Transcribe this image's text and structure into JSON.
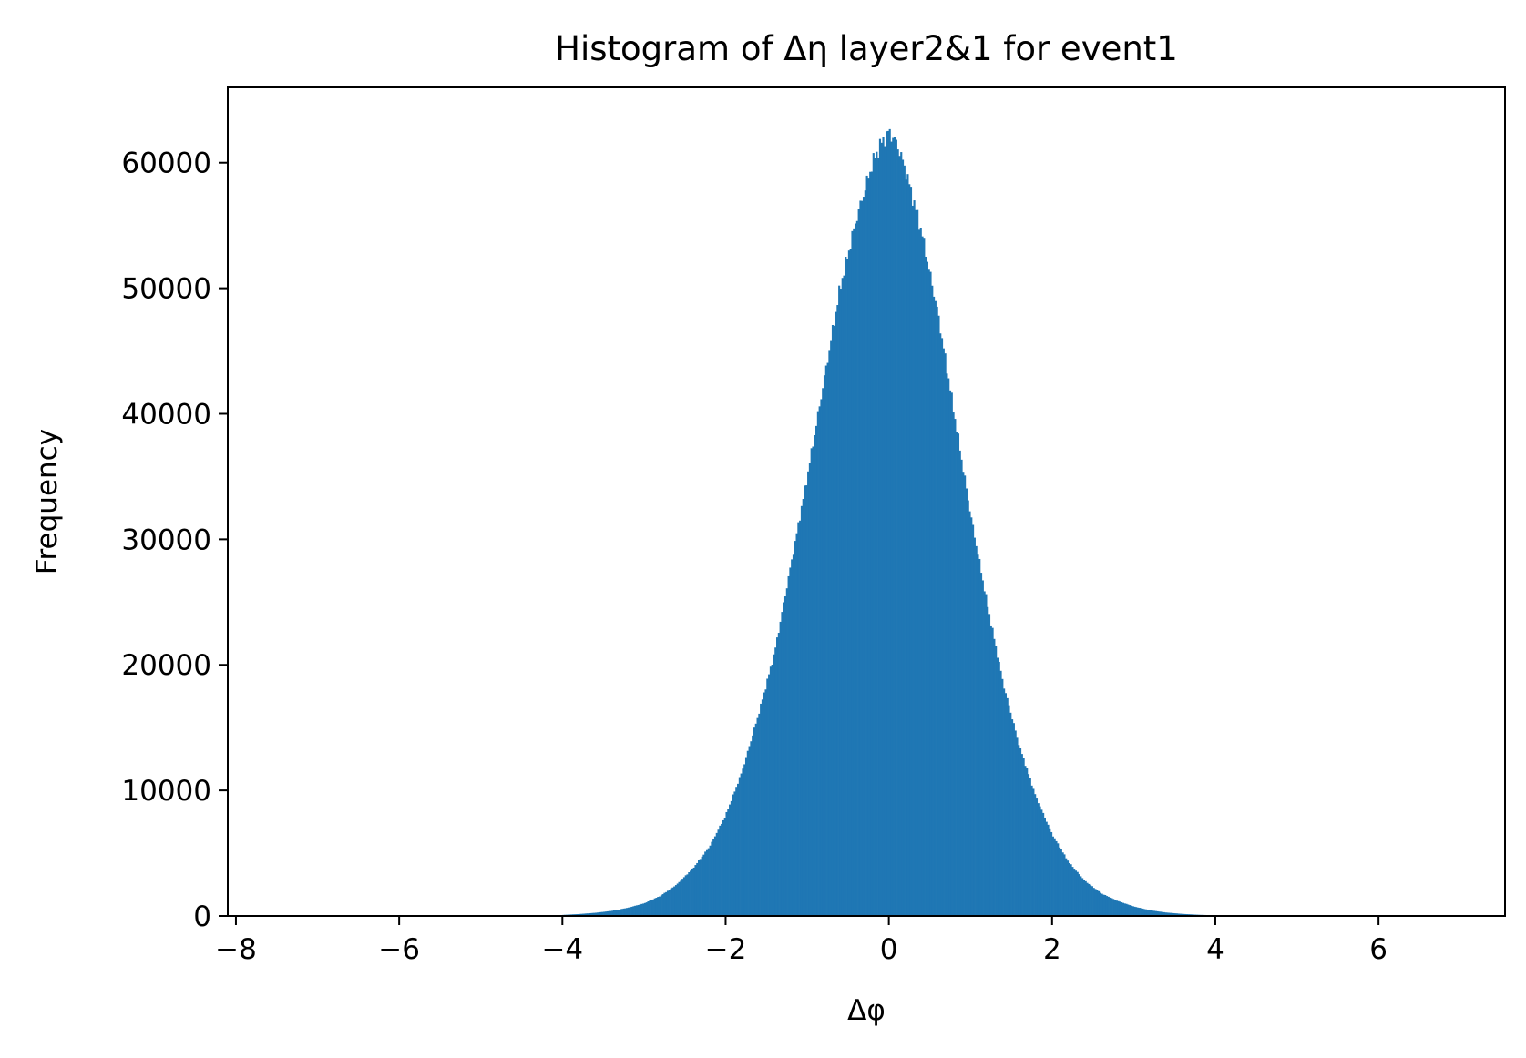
{
  "chart_data": {
    "type": "bar",
    "title": "Histogram of Δη layer2&1 for event1",
    "xlabel": "Δφ",
    "ylabel": "Frequency",
    "xlim": [
      -8.1,
      7.55
    ],
    "ylim": [
      0,
      66000
    ],
    "grid": false,
    "bar_color": "#1f77b4",
    "x_ticks": [
      {
        "value": -8,
        "label": "−8"
      },
      {
        "value": -6,
        "label": "−6"
      },
      {
        "value": -4,
        "label": "−4"
      },
      {
        "value": -2,
        "label": "−2"
      },
      {
        "value": 0,
        "label": "0"
      },
      {
        "value": 2,
        "label": "2"
      },
      {
        "value": 4,
        "label": "4"
      },
      {
        "value": 6,
        "label": "6"
      }
    ],
    "y_ticks": [
      {
        "value": 0,
        "label": "0"
      },
      {
        "value": 10000,
        "label": "10000"
      },
      {
        "value": 20000,
        "label": "20000"
      },
      {
        "value": 30000,
        "label": "30000"
      },
      {
        "value": 40000,
        "label": "40000"
      },
      {
        "value": 50000,
        "label": "50000"
      },
      {
        "value": 60000,
        "label": "60000"
      }
    ],
    "profile": {
      "x": [
        -4.0,
        -3.8,
        -3.6,
        -3.4,
        -3.2,
        -3.0,
        -2.8,
        -2.6,
        -2.4,
        -2.2,
        -2.0,
        -1.8,
        -1.6,
        -1.4,
        -1.2,
        -1.0,
        -0.8,
        -0.6,
        -0.4,
        -0.2,
        -0.1,
        0.0,
        0.1,
        0.2,
        0.4,
        0.6,
        0.8,
        1.0,
        1.2,
        1.4,
        1.6,
        1.8,
        2.0,
        2.2,
        2.4,
        2.6,
        2.8,
        3.0,
        3.2,
        3.4,
        3.6,
        3.8,
        4.0
      ],
      "y": [
        80,
        150,
        250,
        400,
        650,
        1000,
        1600,
        2500,
        3800,
        5500,
        8000,
        11500,
        16000,
        21000,
        28000,
        35000,
        42500,
        50000,
        55500,
        60000,
        61500,
        62500,
        61500,
        59500,
        54500,
        48000,
        40000,
        32000,
        25000,
        18500,
        13500,
        9500,
        6500,
        4300,
        2800,
        1800,
        1200,
        750,
        450,
        270,
        160,
        90,
        50
      ]
    },
    "bin_width": 0.02
  }
}
